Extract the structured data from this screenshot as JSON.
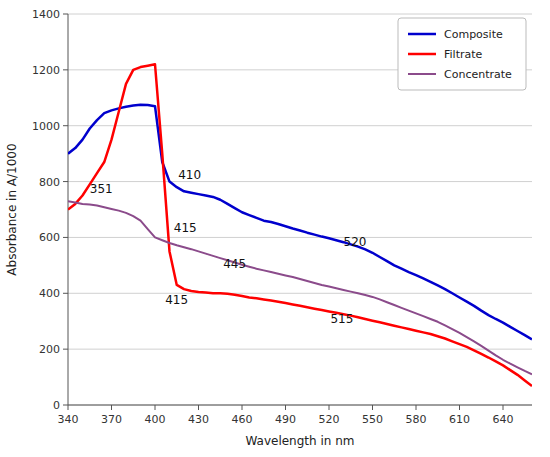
{
  "chart_data": {
    "type": "line",
    "xlabel": "Wavelength in nm",
    "ylabel": "Absorbance in A/1000",
    "xlim": [
      340,
      660
    ],
    "ylim": [
      0,
      1400
    ],
    "xticks": [
      340,
      370,
      400,
      430,
      460,
      490,
      520,
      550,
      580,
      610,
      640
    ],
    "yticks": [
      0,
      200,
      400,
      600,
      800,
      1000,
      1200,
      1400
    ],
    "grid": true,
    "legend": "upper right",
    "annotations": [
      {
        "text": "351",
        "x": 355,
        "y": 760
      },
      {
        "text": "410",
        "x": 416,
        "y": 810
      },
      {
        "text": "415",
        "x": 413,
        "y": 618
      },
      {
        "text": "445",
        "x": 447,
        "y": 490
      },
      {
        "text": "415",
        "x": 407,
        "y": 362
      },
      {
        "text": "520",
        "x": 530,
        "y": 570
      },
      {
        "text": "515",
        "x": 521,
        "y": 295
      }
    ],
    "x": [
      340,
      345,
      350,
      355,
      360,
      365,
      370,
      375,
      380,
      385,
      390,
      395,
      400,
      405,
      410,
      415,
      420,
      425,
      430,
      435,
      440,
      445,
      450,
      455,
      460,
      465,
      470,
      475,
      480,
      485,
      490,
      495,
      500,
      505,
      510,
      515,
      520,
      525,
      530,
      535,
      540,
      545,
      550,
      555,
      560,
      565,
      570,
      575,
      580,
      585,
      590,
      595,
      600,
      605,
      610,
      615,
      620,
      625,
      630,
      635,
      640,
      645,
      650,
      655,
      660
    ],
    "series": [
      {
        "name": "Composite",
        "color": "#0000CD",
        "values": [
          900,
          920,
          950,
          990,
          1020,
          1045,
          1055,
          1062,
          1068,
          1072,
          1075,
          1074,
          1070,
          870,
          800,
          780,
          765,
          760,
          755,
          750,
          745,
          735,
          720,
          705,
          690,
          680,
          670,
          660,
          655,
          648,
          640,
          632,
          625,
          617,
          610,
          603,
          597,
          590,
          583,
          575,
          567,
          557,
          545,
          530,
          515,
          500,
          488,
          476,
          465,
          453,
          441,
          428,
          415,
          400,
          385,
          370,
          355,
          338,
          322,
          308,
          295,
          280,
          265,
          250,
          235
        ]
      },
      {
        "name": "Filtrate",
        "color": "#FF0000",
        "values": [
          700,
          720,
          750,
          790,
          830,
          870,
          950,
          1050,
          1150,
          1200,
          1210,
          1215,
          1220,
          900,
          550,
          430,
          415,
          408,
          405,
          403,
          400,
          400,
          398,
          395,
          390,
          385,
          382,
          378,
          374,
          370,
          365,
          360,
          355,
          350,
          345,
          340,
          335,
          330,
          325,
          320,
          314,
          308,
          302,
          296,
          290,
          284,
          278,
          272,
          266,
          260,
          254,
          246,
          238,
          228,
          218,
          208,
          196,
          183,
          170,
          156,
          142,
          125,
          108,
          88,
          68
        ]
      },
      {
        "name": "Concentrate",
        "color": "#8B4B8B",
        "values": [
          730,
          725,
          720,
          718,
          714,
          708,
          702,
          696,
          688,
          676,
          660,
          630,
          600,
          590,
          580,
          572,
          565,
          558,
          550,
          542,
          534,
          526,
          518,
          510,
          502,
          495,
          488,
          482,
          476,
          470,
          464,
          458,
          451,
          444,
          437,
          430,
          424,
          418,
          412,
          406,
          400,
          394,
          387,
          378,
          368,
          358,
          348,
          338,
          328,
          318,
          308,
          298,
          285,
          272,
          258,
          243,
          228,
          212,
          195,
          178,
          162,
          148,
          135,
          122,
          110
        ]
      }
    ]
  }
}
